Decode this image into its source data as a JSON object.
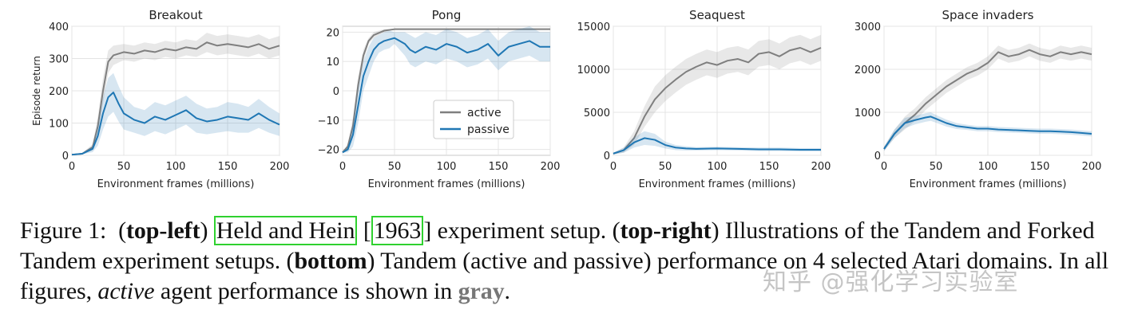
{
  "colors": {
    "active": "#7f7f7f",
    "passive": "#1f77b4",
    "citation_box": "#2fd12f"
  },
  "chart_data": [
    {
      "type": "line",
      "title": "Breakout",
      "xlabel": "Environment frames (millions)",
      "ylabel": "Episode return",
      "xlim": [
        0,
        200
      ],
      "ylim": [
        0,
        400
      ],
      "xticks": [
        0,
        50,
        100,
        150,
        200
      ],
      "yticks": [
        0,
        100,
        200,
        300,
        400
      ],
      "grid": true,
      "series": [
        {
          "name": "active",
          "color": "#7f7f7f",
          "x": [
            0,
            10,
            20,
            25,
            30,
            35,
            40,
            50,
            60,
            70,
            80,
            90,
            100,
            110,
            120,
            130,
            140,
            150,
            160,
            170,
            180,
            190,
            200
          ],
          "y": [
            2,
            5,
            25,
            90,
            200,
            290,
            310,
            320,
            315,
            325,
            320,
            330,
            325,
            335,
            330,
            350,
            340,
            345,
            340,
            335,
            345,
            330,
            340
          ],
          "band": [
            0,
            2,
            10,
            30,
            40,
            35,
            30,
            25,
            25,
            25,
            25,
            25,
            25,
            25,
            25,
            30,
            30,
            30,
            30,
            30,
            30,
            30,
            30
          ]
        },
        {
          "name": "passive",
          "color": "#1f77b4",
          "x": [
            0,
            10,
            20,
            25,
            30,
            35,
            40,
            45,
            50,
            55,
            60,
            70,
            80,
            90,
            100,
            110,
            120,
            130,
            140,
            150,
            160,
            170,
            180,
            190,
            200
          ],
          "y": [
            2,
            5,
            20,
            60,
            130,
            180,
            195,
            160,
            130,
            120,
            110,
            100,
            120,
            110,
            125,
            140,
            115,
            105,
            110,
            120,
            115,
            110,
            130,
            110,
            95
          ],
          "band": [
            0,
            2,
            10,
            30,
            50,
            60,
            60,
            55,
            50,
            45,
            40,
            40,
            45,
            45,
            45,
            45,
            45,
            40,
            40,
            45,
            45,
            40,
            45,
            40,
            35
          ]
        }
      ]
    },
    {
      "type": "line",
      "title": "Pong",
      "xlabel": "Environment frames (millions)",
      "ylabel": "",
      "xlim": [
        0,
        200
      ],
      "ylim": [
        -22,
        22
      ],
      "xticks": [
        0,
        50,
        100,
        150,
        200
      ],
      "yticks": [
        -20,
        -10,
        0,
        10,
        20
      ],
      "grid": true,
      "legend_position": "lower-right",
      "series": [
        {
          "name": "active",
          "color": "#7f7f7f",
          "x": [
            0,
            5,
            10,
            15,
            20,
            25,
            30,
            40,
            50,
            60,
            80,
            100,
            150,
            200
          ],
          "y": [
            -21,
            -19,
            -12,
            2,
            12,
            17,
            19,
            20.5,
            21,
            21,
            21,
            21,
            21,
            21
          ],
          "band": [
            0,
            1,
            3,
            3,
            2,
            1,
            1,
            0.5,
            0,
            0,
            0,
            0,
            0,
            0
          ]
        },
        {
          "name": "passive",
          "color": "#1f77b4",
          "x": [
            0,
            5,
            10,
            15,
            20,
            25,
            30,
            35,
            40,
            45,
            50,
            55,
            60,
            65,
            70,
            80,
            90,
            100,
            110,
            120,
            130,
            140,
            150,
            160,
            170,
            180,
            190,
            200
          ],
          "y": [
            -21,
            -20,
            -15,
            -5,
            5,
            10,
            14,
            16,
            17,
            17.5,
            18,
            17,
            16,
            14,
            13,
            15,
            14,
            16,
            15,
            13,
            14,
            16,
            12,
            15,
            16,
            17,
            15,
            15
          ],
          "band": [
            0,
            1,
            4,
            6,
            5,
            5,
            4,
            3,
            3,
            3,
            2,
            3,
            4,
            5,
            5,
            5,
            5,
            5,
            5,
            5,
            5,
            5,
            5,
            5,
            5,
            5,
            5,
            5
          ]
        }
      ]
    },
    {
      "type": "line",
      "title": "Seaquest",
      "xlabel": "Environment frames (millions)",
      "ylabel": "",
      "xlim": [
        0,
        200
      ],
      "ylim": [
        0,
        15000
      ],
      "xticks": [
        0,
        50,
        100,
        150,
        200
      ],
      "yticks": [
        0,
        5000,
        10000,
        15000
      ],
      "grid": true,
      "series": [
        {
          "name": "active",
          "color": "#7f7f7f",
          "x": [
            0,
            10,
            20,
            30,
            40,
            50,
            60,
            70,
            80,
            90,
            100,
            110,
            120,
            130,
            140,
            150,
            160,
            170,
            180,
            190,
            200
          ],
          "y": [
            200,
            600,
            2000,
            4500,
            6500,
            7800,
            8800,
            9700,
            10300,
            10800,
            10500,
            11000,
            11200,
            10800,
            11800,
            12000,
            11500,
            12200,
            12500,
            12000,
            12500
          ],
          "band": [
            100,
            300,
            800,
            1200,
            1500,
            1500,
            1500,
            1500,
            1500,
            1500,
            1500,
            1500,
            1500,
            1500,
            1500,
            1500,
            1500,
            1500,
            1500,
            1500,
            1500
          ]
        },
        {
          "name": "passive",
          "color": "#1f77b4",
          "x": [
            0,
            10,
            20,
            30,
            40,
            50,
            60,
            70,
            80,
            100,
            120,
            140,
            160,
            180,
            200
          ],
          "y": [
            200,
            600,
            1500,
            2000,
            1800,
            1200,
            900,
            800,
            750,
            800,
            750,
            700,
            700,
            650,
            650
          ],
          "band": [
            100,
            300,
            600,
            800,
            700,
            400,
            300,
            250,
            200,
            200,
            200,
            200,
            200,
            200,
            200
          ]
        }
      ]
    },
    {
      "type": "line",
      "title": "Space invaders",
      "xlabel": "Environment frames (millions)",
      "ylabel": "",
      "xlim": [
        0,
        200
      ],
      "ylim": [
        0,
        3000
      ],
      "xticks": [
        0,
        50,
        100,
        150,
        200
      ],
      "yticks": [
        0,
        1000,
        2000,
        3000
      ],
      "grid": true,
      "series": [
        {
          "name": "active",
          "color": "#7f7f7f",
          "x": [
            0,
            10,
            20,
            30,
            40,
            50,
            60,
            70,
            80,
            90,
            100,
            110,
            120,
            130,
            140,
            150,
            160,
            170,
            180,
            190,
            200
          ],
          "y": [
            150,
            500,
            750,
            950,
            1200,
            1400,
            1600,
            1750,
            1900,
            2000,
            2150,
            2400,
            2300,
            2350,
            2450,
            2350,
            2300,
            2400,
            2350,
            2400,
            2350
          ],
          "band": [
            50,
            100,
            150,
            150,
            150,
            150,
            150,
            150,
            150,
            150,
            150,
            150,
            150,
            150,
            150,
            150,
            150,
            150,
            150,
            150,
            150
          ]
        },
        {
          "name": "passive",
          "color": "#1f77b4",
          "x": [
            0,
            10,
            20,
            30,
            40,
            45,
            50,
            60,
            70,
            80,
            90,
            100,
            110,
            120,
            130,
            140,
            150,
            160,
            170,
            180,
            190,
            200
          ],
          "y": [
            150,
            500,
            750,
            820,
            880,
            900,
            850,
            750,
            680,
            650,
            620,
            620,
            600,
            590,
            580,
            570,
            560,
            560,
            550,
            540,
            520,
            500
          ],
          "band": [
            50,
            100,
            120,
            100,
            100,
            100,
            90,
            80,
            70,
            60,
            60,
            60,
            60,
            60,
            60,
            60,
            60,
            60,
            60,
            60,
            60,
            60
          ]
        }
      ]
    }
  ],
  "caption": {
    "figure_label": "Figure 1:",
    "p1": "(",
    "top_left": "top-left",
    "p2": ")",
    "citation_authors": "Held and Hein",
    "bracket_open": "[",
    "citation_year": "1963",
    "bracket_close": "]",
    "t1": "experiment setup. (",
    "top_right": "top-right",
    "t2": ") Illustrations of the Tandem and Forked Tandem experiment setups. (",
    "bottom": "bottom",
    "t3": ") Tandem (active and passive) performance on 4 selected Atari domains. In all figures,",
    "active_word": "active",
    "t4": "agent performance is shown in",
    "gray_word": "gray",
    "t5": "."
  },
  "watermark": "知乎 @强化学习实验室"
}
